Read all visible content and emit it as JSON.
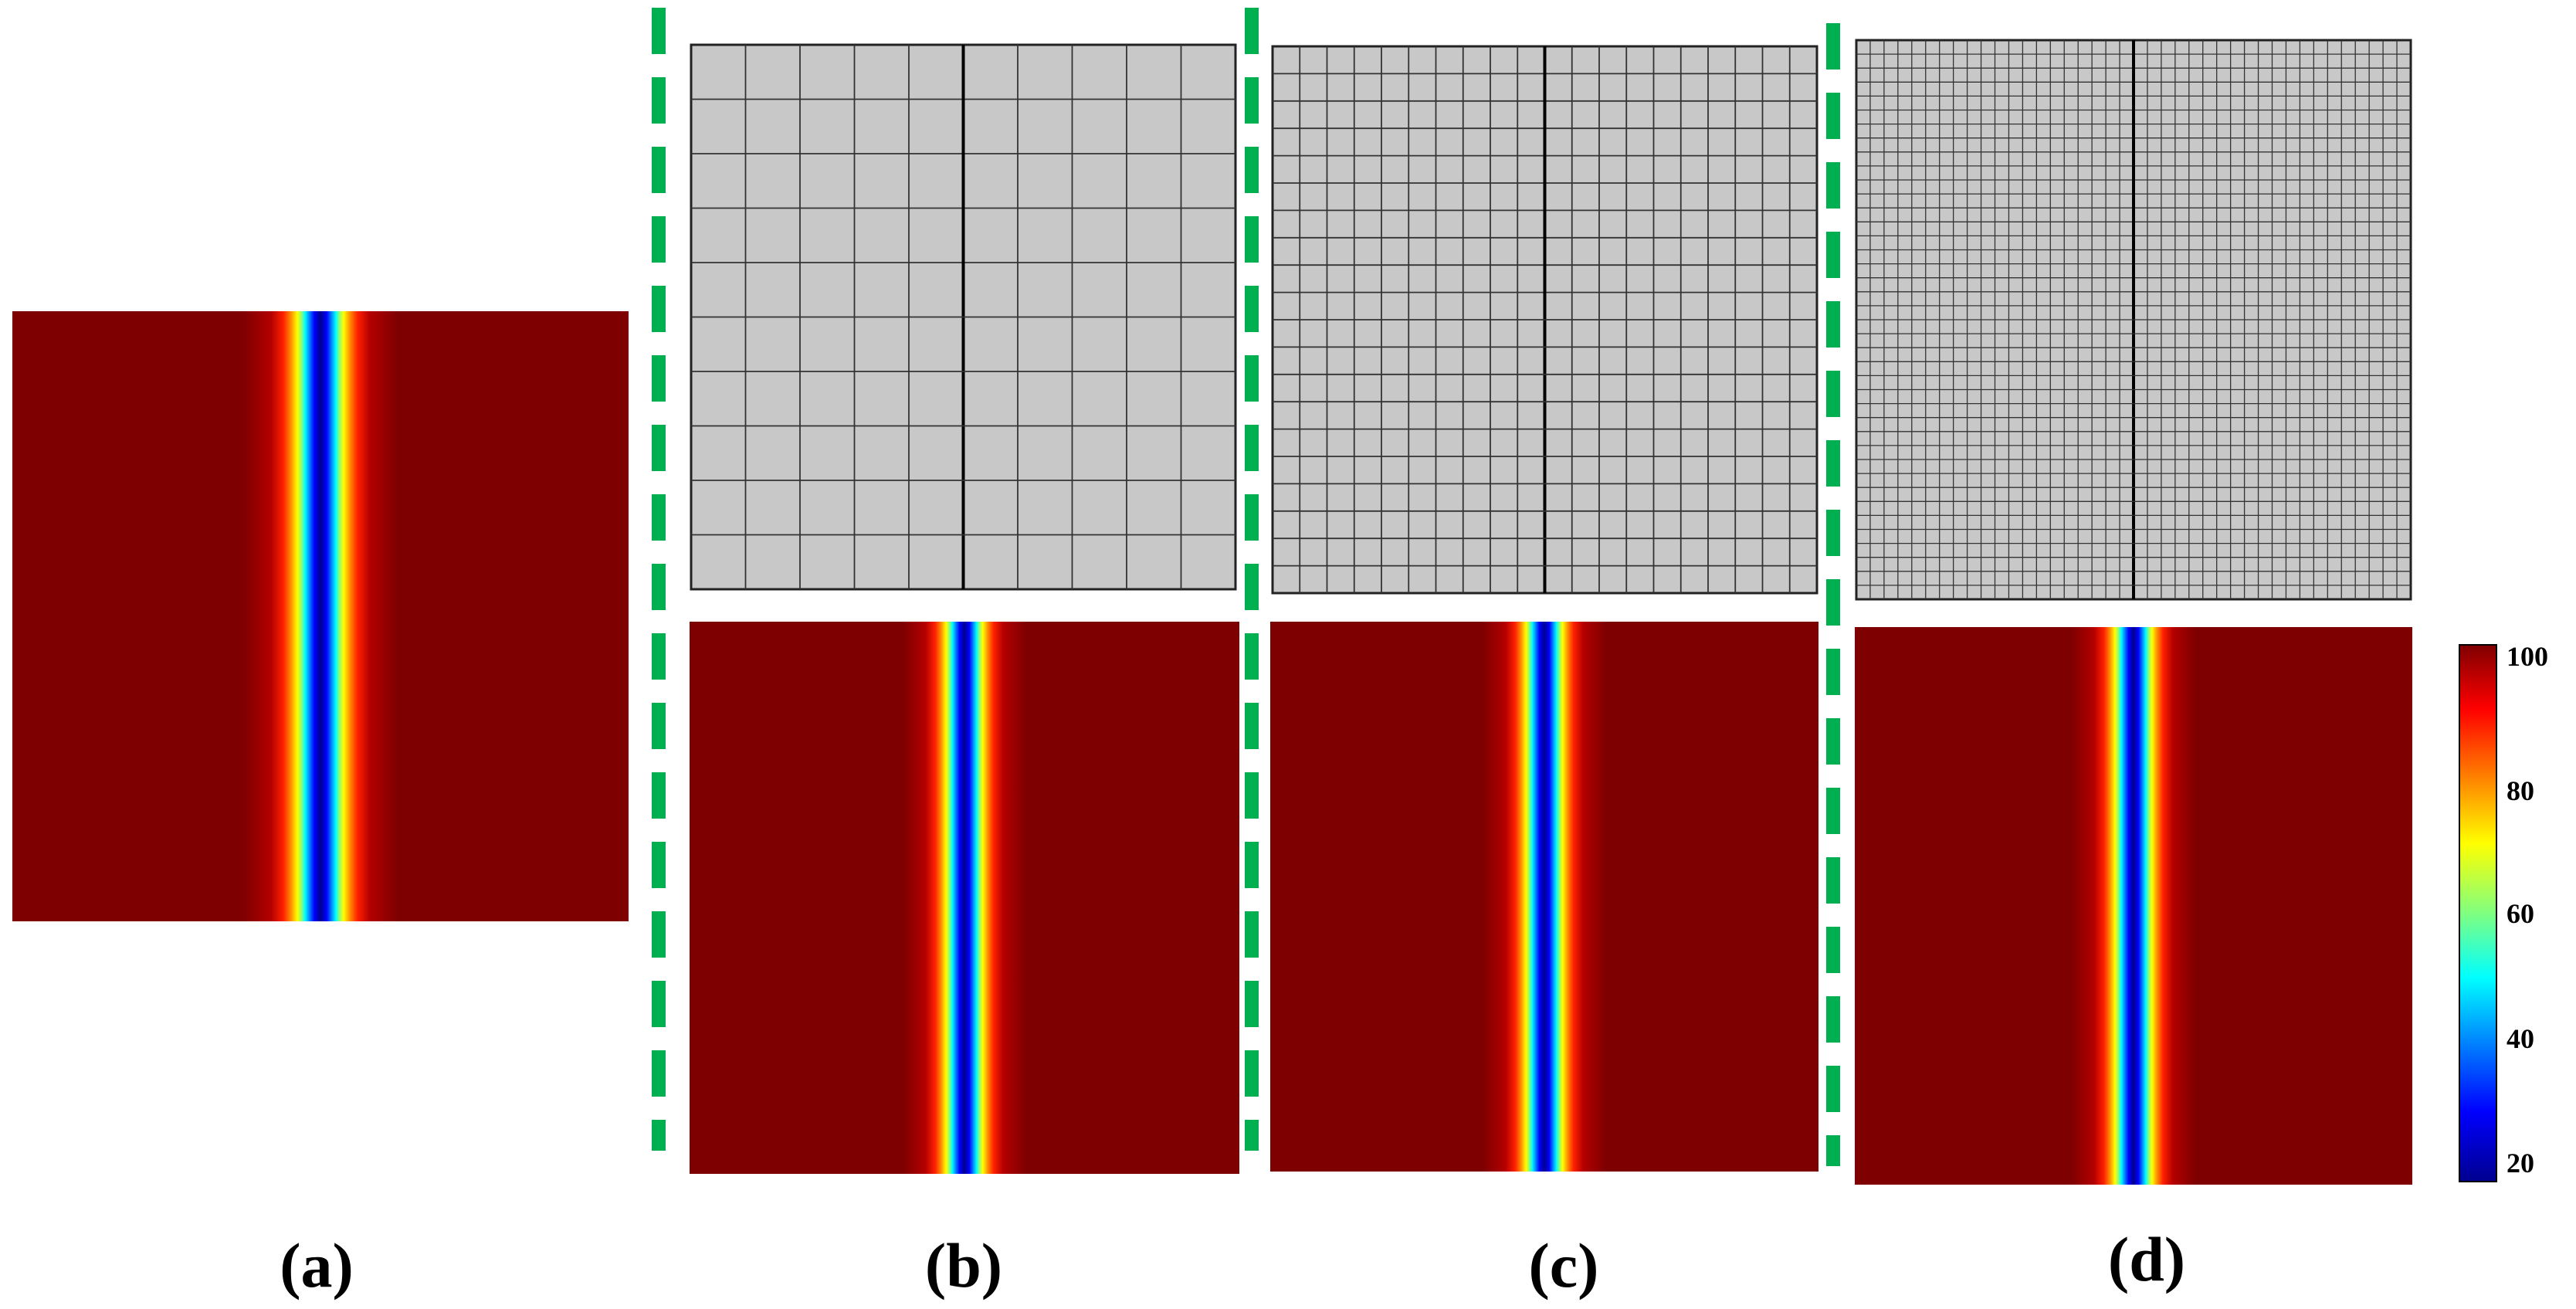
{
  "figure": {
    "panels": [
      {
        "id": "a",
        "label": "(a)",
        "mesh_divisions": null
      },
      {
        "id": "b",
        "label": "(b)",
        "mesh_divisions": 10
      },
      {
        "id": "c",
        "label": "(c)",
        "mesh_divisions": 20
      },
      {
        "id": "d",
        "label": "(d)",
        "mesh_divisions": 40
      }
    ],
    "colorbar": {
      "min": 17,
      "max": 105,
      "ticks": [
        "100",
        "80",
        "60",
        "40",
        "20"
      ]
    },
    "colors": {
      "mesh_fill": "#c8c8c8",
      "mesh_line": "#333333",
      "separator": "#00b050",
      "field_background": "#7f0000"
    }
  }
}
